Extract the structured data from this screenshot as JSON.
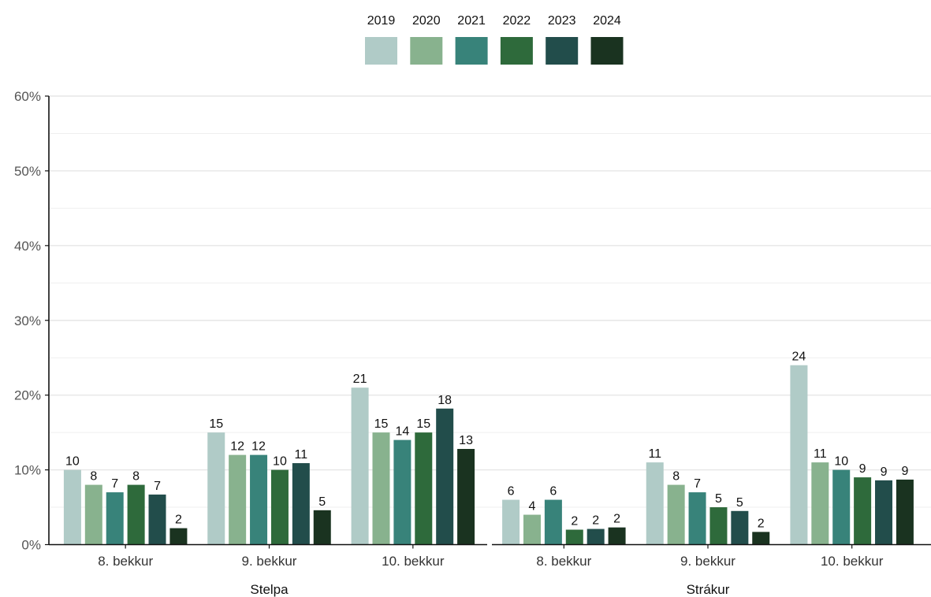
{
  "chart_data": {
    "type": "bar",
    "legend_position": "top-center",
    "grid": true,
    "ylim": [
      0,
      60
    ],
    "yticks": [
      "0%",
      "10%",
      "20%",
      "30%",
      "40%",
      "50%",
      "60%"
    ],
    "series": [
      {
        "name": "2019",
        "color": "#b0cbc7"
      },
      {
        "name": "2020",
        "color": "#88b28e"
      },
      {
        "name": "2021",
        "color": "#38837a"
      },
      {
        "name": "2022",
        "color": "#2e6a3b"
      },
      {
        "name": "2023",
        "color": "#224d4b"
      },
      {
        "name": "2024",
        "color": "#1a3320"
      }
    ],
    "panels": [
      {
        "label": "Stelpa",
        "groups": [
          {
            "category": "8. bekkur",
            "values": [
              10,
              8,
              7,
              8,
              6.7,
              2.2
            ],
            "labels": [
              "10",
              "8",
              "7",
              "8",
              "7",
              "2"
            ]
          },
          {
            "category": "9. bekkur",
            "values": [
              15,
              12,
              12,
              10,
              10.9,
              4.6
            ],
            "labels": [
              "15",
              "12",
              "12",
              "10",
              "11",
              "5"
            ]
          },
          {
            "category": "10. bekkur",
            "values": [
              21,
              15,
              14,
              15,
              18.2,
              12.8
            ],
            "labels": [
              "21",
              "15",
              "14",
              "15",
              "18",
              "13"
            ]
          }
        ]
      },
      {
        "label": "Strákur",
        "groups": [
          {
            "category": "8. bekkur",
            "values": [
              6,
              4,
              6,
              2,
              2.1,
              2.3
            ],
            "labels": [
              "6",
              "4",
              "6",
              "2",
              "2",
              "2"
            ]
          },
          {
            "category": "9. bekkur",
            "values": [
              11,
              8,
              7,
              5,
              4.5,
              1.7
            ],
            "labels": [
              "11",
              "8",
              "7",
              "5",
              "5",
              "2"
            ]
          },
          {
            "category": "10. bekkur",
            "values": [
              24,
              11,
              10,
              9,
              8.6,
              8.7
            ],
            "labels": [
              "24",
              "11",
              "10",
              "9",
              "9",
              "9"
            ]
          }
        ]
      }
    ]
  }
}
